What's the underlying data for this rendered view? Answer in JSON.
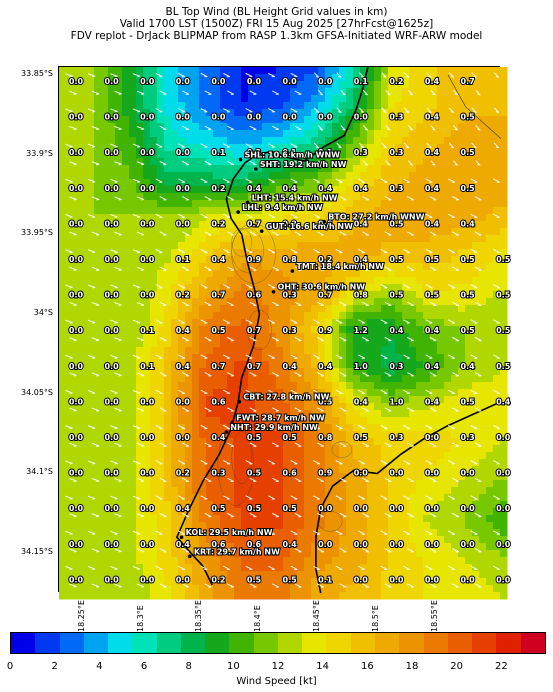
{
  "header": {
    "line1": "BL Top Wind (BL Height Grid values in km)",
    "line2": "Valid 1700 LST (1500Z) FRI 15 Aug 2025 [27hrFcst@1625z]",
    "line3": "FDV replot - DrJack BLIPMAP from RASP 1.3km GFSA-Initiated WRF-ARW model"
  },
  "lat_labels": [
    "33.85°S",
    "33.9°S",
    "33.95°S",
    "34°S",
    "34.05°S",
    "34.1°S",
    "34.15°S"
  ],
  "lon_labels": [
    "18.25°E",
    "18.3°E",
    "18.35°E",
    "18.4°E",
    "18.45°E",
    "18.5°E",
    "18.55°E"
  ],
  "grid_values": [
    [
      "0.0",
      "0.0",
      "0.0",
      "0.0",
      "0.0",
      "0.0",
      "0.0",
      "0.0",
      "0.1",
      "0.2",
      "0.4",
      "0.7"
    ],
    [
      "0.0",
      "0.0",
      "0.0",
      "0.0",
      "0.0",
      "0.0",
      "0.0",
      "0.0",
      "0.0",
      "0.3",
      "0.4",
      "0.5"
    ],
    [
      "0.0",
      "0.0",
      "0.0",
      "0.0",
      "0.1",
      "0.3",
      "0.1",
      "0.1",
      "0.3",
      "0.3",
      "0.4",
      "0.5"
    ],
    [
      "0.0",
      "0.0",
      "0.0",
      "0.0",
      "0.2",
      "0.4",
      "0.4",
      "0.4",
      "0.4",
      "0.3",
      "0.4",
      "0.5"
    ],
    [
      "0.0",
      "0.0",
      "0.0",
      "0.0",
      "0.2",
      "0.7",
      "0.8",
      "0.6",
      "0.4",
      "0.5",
      "0.4",
      "0.4"
    ],
    [
      "0.0",
      "0.0",
      "0.0",
      "0.1",
      "0.4",
      "0.9",
      "0.8",
      "0.2",
      "0.4",
      "0.5",
      "0.5",
      "0.5",
      "0.5"
    ],
    [
      "0.0",
      "0.0",
      "0.0",
      "0.2",
      "0.7",
      "0.6",
      "0.3",
      "0.7",
      "0.8",
      "0.5",
      "0.5",
      "0.5",
      "0.5"
    ],
    [
      "0.0",
      "0.0",
      "0.1",
      "0.4",
      "0.5",
      "0.7",
      "0.3",
      "0.9",
      "1.2",
      "0.4",
      "0.4",
      "0.5",
      "0.5"
    ],
    [
      "0.0",
      "0.0",
      "0.1",
      "0.4",
      "0.7",
      "0.7",
      "0.4",
      "0.4",
      "1.0",
      "0.3",
      "0.4",
      "0.4",
      "0.5"
    ],
    [
      "0.0",
      "0.0",
      "0.0",
      "0.0",
      "0.6",
      "",
      "",
      "0.5",
      "0.4",
      "1.0",
      "0.4",
      "0.5",
      "0.4"
    ],
    [
      "0.0",
      "0.0",
      "0.0",
      "0.0",
      "0.4",
      "0.5",
      "0.5",
      "0.8",
      "0.5",
      "0.3",
      "0.0",
      "0.3",
      "0.0"
    ],
    [
      "0.0",
      "0.0",
      "0.0",
      "0.2",
      "0.3",
      "0.5",
      "0.6",
      "0.9",
      "0.0",
      "0.0",
      "0.0",
      "0.0",
      "0.0"
    ],
    [
      "0.0",
      "0.0",
      "0.0",
      "0.4",
      "0.5",
      "0.5",
      "0.5",
      "0.0",
      "0.0",
      "0.0",
      "0.0",
      "0.0",
      "0.0"
    ],
    [
      "0.0",
      "0.0",
      "0.0",
      "0.4",
      "0.6",
      "0.6",
      "0.4",
      "0.0",
      "0.0",
      "0.0",
      "0.0",
      "0.0",
      "0.0"
    ],
    [
      "0.0",
      "0.0",
      "0.0",
      "0.0",
      "0.2",
      "0.5",
      "0.5",
      "0.1",
      "0.0",
      "0.0",
      "0.0",
      "0.0",
      "0.0"
    ]
  ],
  "stations": [
    {
      "label": "SHL: 10.6 km/h WNW",
      "lon": 18.384,
      "lat": -33.903
    },
    {
      "label": "SHT: 19.2 km/h NW",
      "lon": 18.397,
      "lat": -33.909
    },
    {
      "label": "LHT: 15.4 km/h NW",
      "lon": 18.39,
      "lat": -33.93
    },
    {
      "label": "LHL: 9.4 km/h NW",
      "lon": 18.382,
      "lat": -33.936
    },
    {
      "label": "BTO: 27.2 km/h WNW",
      "lon": 18.455,
      "lat": -33.942
    },
    {
      "label": "GUT: 16.6 km/h NW",
      "lon": 18.402,
      "lat": -33.948
    },
    {
      "label": "TMT: 18.4 km/h NW",
      "lon": 18.428,
      "lat": -33.973
    },
    {
      "label": "OHT: 30.6 km/h NW",
      "lon": 18.412,
      "lat": -33.986
    },
    {
      "label": "CBT: 27.8 km/h NW",
      "lon": 18.383,
      "lat": -34.055
    },
    {
      "label": "FWT: 28.7 km/h NW",
      "lon": 18.377,
      "lat": -34.068
    },
    {
      "label": "NHT: 29.9 km/h NW",
      "lon": 18.372,
      "lat": -34.074
    },
    {
      "label": "KOL: 29.5 km/h NW",
      "lon": 18.334,
      "lat": -34.14
    },
    {
      "label": "KRT: 29.7 km/h NW",
      "lon": 18.341,
      "lat": -34.152
    }
  ],
  "colorbar": {
    "label": "Wind Speed [kt]",
    "ticks": [
      "0",
      "2",
      "4",
      "6",
      "8",
      "10",
      "12",
      "14",
      "16",
      "18",
      "20",
      "22"
    ],
    "colors": [
      "#0000e8",
      "#0039f0",
      "#0069f6",
      "#00a3f0",
      "#00dcea",
      "#00e2b8",
      "#00cc80",
      "#00b44c",
      "#15a81c",
      "#40b400",
      "#78c800",
      "#b0d800",
      "#e6e600",
      "#f0d600",
      "#f0c000",
      "#eeaa00",
      "#ec9400",
      "#ea7a00",
      "#e85e00",
      "#e64000",
      "#e02000",
      "#d00020"
    ]
  },
  "chart_data": {
    "type": "heatmap",
    "variable": "Wind Speed [kt]",
    "colorbar_range": [
      0,
      24
    ],
    "lon_range": [
      18.23,
      18.605
    ],
    "lat_range": [
      -34.175,
      -33.845
    ],
    "wind_speed_kt": [
      [
        12,
        12,
        9,
        5,
        3,
        1,
        1,
        2,
        6,
        13,
        15,
        16,
        16
      ],
      [
        12,
        12,
        9,
        5,
        3,
        1,
        2,
        4,
        8,
        14,
        15,
        16,
        16
      ],
      [
        12,
        12,
        10,
        6,
        5,
        4,
        5,
        7,
        11,
        15,
        16,
        17,
        17
      ],
      [
        12,
        12,
        11,
        8,
        8,
        8,
        10,
        11,
        14,
        16,
        17,
        17,
        17
      ],
      [
        12,
        12,
        12,
        12,
        13,
        14,
        14,
        15,
        16,
        17,
        17,
        17,
        16
      ],
      [
        12,
        12,
        12,
        13,
        15,
        17,
        17,
        17,
        17,
        16,
        16,
        15,
        14
      ],
      [
        12,
        12,
        12,
        14,
        17,
        19,
        18,
        17,
        14,
        12,
        14,
        14,
        13
      ],
      [
        12,
        12,
        12,
        15,
        19,
        20,
        18,
        15,
        9,
        9,
        11,
        12,
        12
      ],
      [
        12,
        12,
        13,
        16,
        20,
        21,
        19,
        16,
        10,
        8,
        10,
        12,
        13
      ],
      [
        12,
        12,
        13,
        16,
        21,
        21,
        20,
        18,
        14,
        12,
        13,
        14,
        14
      ],
      [
        12,
        12,
        13,
        16,
        20,
        21,
        21,
        19,
        16,
        15,
        15,
        14,
        13
      ],
      [
        12,
        12,
        13,
        16,
        20,
        21,
        21,
        19,
        17,
        15,
        14,
        13,
        12
      ],
      [
        12,
        12,
        13,
        15,
        19,
        21,
        21,
        19,
        17,
        15,
        13,
        12,
        10
      ],
      [
        12,
        12,
        13,
        15,
        18,
        20,
        20,
        18,
        17,
        15,
        14,
        13,
        12
      ],
      [
        12,
        12,
        12,
        14,
        17,
        19,
        19,
        17,
        16,
        15,
        14,
        14,
        13
      ]
    ],
    "wind_direction": "NW"
  }
}
